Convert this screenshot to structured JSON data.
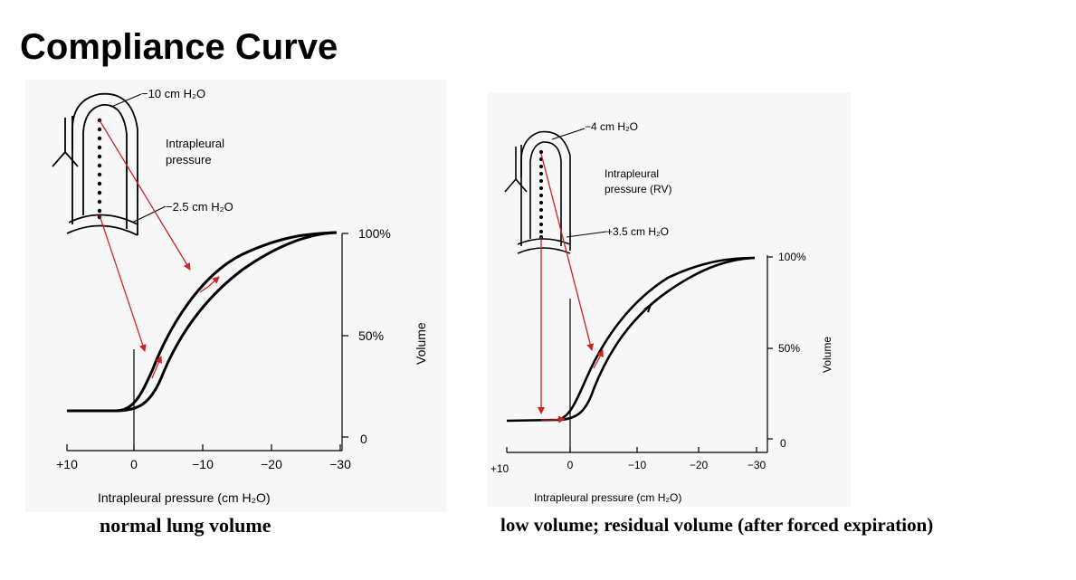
{
  "title": "Compliance Curve",
  "colors": {
    "arrow": "#cc2222",
    "curve": "#000000",
    "panel_bg": "#f7f7f7"
  },
  "panels": [
    {
      "caption": "normal lung volume",
      "apex_label": "−10 cm H₂O",
      "base_label": "−2.5 cm H₂O",
      "pressure_label_line1": "Intrapleural",
      "pressure_label_line2": "pressure",
      "y_ticks": [
        "100%",
        "50%",
        "0"
      ],
      "y_axis_label": "Volume",
      "x_ticks": [
        "+10",
        "0",
        "−10",
        "−20",
        "−30"
      ],
      "x_axis_label": "Intrapleural pressure (cm H₂O)"
    },
    {
      "caption": "low volume; residual volume (after forced expiration)",
      "apex_label": "−4 cm H₂O",
      "base_label": "+3.5 cm H₂O",
      "pressure_label_line1": "Intrapleural",
      "pressure_label_line2": "pressure (RV)",
      "y_ticks": [
        "100%",
        "50%",
        "0"
      ],
      "y_axis_label": "Volume",
      "x_ticks": [
        "+10",
        "0",
        "−10",
        "−20",
        "−30"
      ],
      "x_axis_label": "Intrapleural pressure (cm H₂O)"
    }
  ]
}
